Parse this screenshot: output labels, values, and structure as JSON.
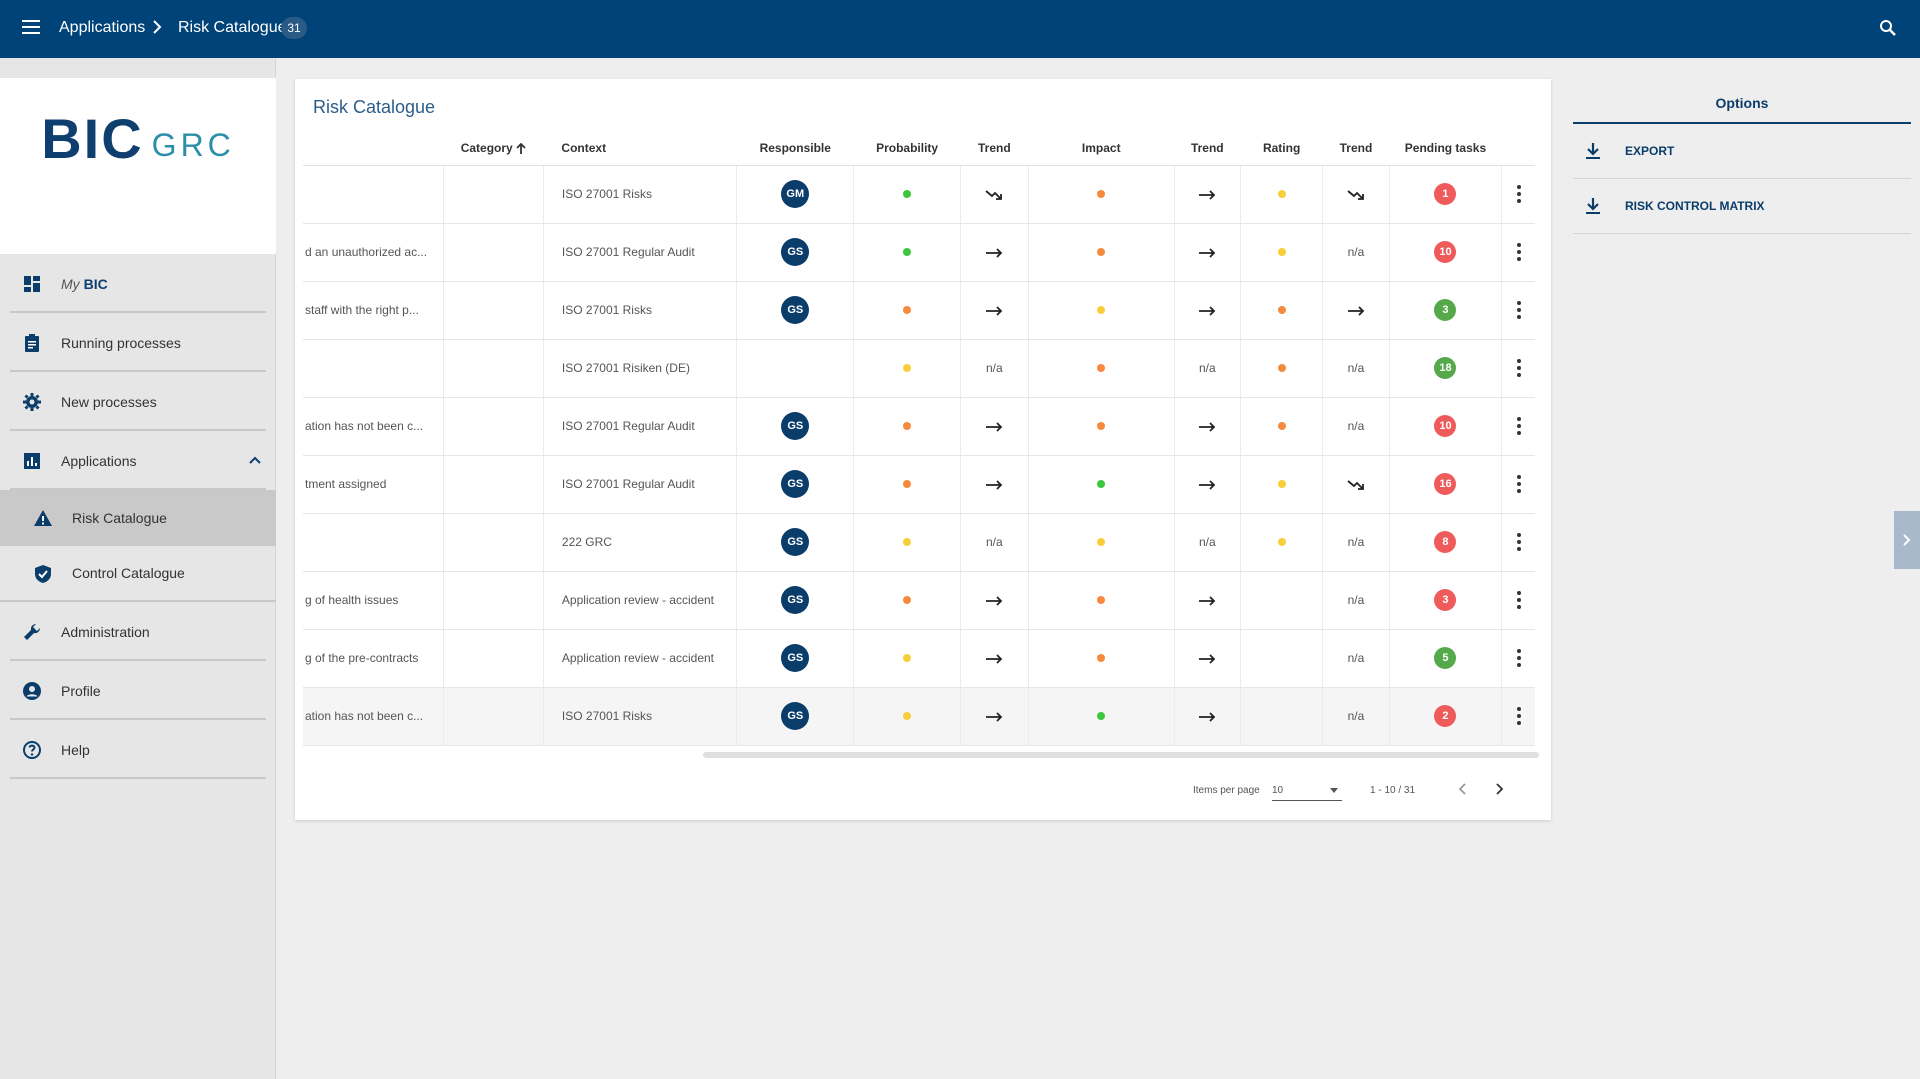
{
  "topbar": {
    "breadcrumb": [
      "Applications",
      "Risk Catalogue"
    ],
    "count": "31"
  },
  "sidebar": {
    "logo": {
      "main": "BIC",
      "sub": "GRC"
    },
    "items": [
      {
        "label": "BIC",
        "prefix": "My",
        "icon": "dashboard-icon"
      },
      {
        "label": "Running processes",
        "icon": "clipboard-icon"
      },
      {
        "label": "New processes",
        "icon": "gear-icon"
      },
      {
        "label": "Applications",
        "icon": "bar-chart-icon"
      },
      {
        "label": "Risk Catalogue",
        "icon": "warning-icon"
      },
      {
        "label": "Control Catalogue",
        "icon": "shield-check-icon"
      },
      {
        "label": "Administration",
        "icon": "wrench-icon"
      },
      {
        "label": "Profile",
        "icon": "account-circle-icon"
      },
      {
        "label": "Help",
        "icon": "help-circle-icon"
      }
    ]
  },
  "main": {
    "title": "Risk Catalogue",
    "columns": [
      "",
      "Category",
      "Context",
      "Responsible",
      "Probability",
      "Trend",
      "Impact",
      "Trend",
      "Rating",
      "Trend",
      "Pending tasks",
      ""
    ],
    "rows": [
      {
        "name": "",
        "context": "ISO 27001 Risks",
        "resp": "GM",
        "prob": "green",
        "t1": "down",
        "imp": "orange",
        "t2": "right",
        "rat": "yellow",
        "t3": "down",
        "tasks": "1",
        "tcolor": "red"
      },
      {
        "name": "d an unauthorized ac...",
        "context": "ISO 27001 Regular Audit",
        "resp": "GS",
        "prob": "green",
        "t1": "right",
        "imp": "orange",
        "t2": "right",
        "rat": "yellow",
        "t3": "n/a",
        "tasks": "10",
        "tcolor": "red"
      },
      {
        "name": "staff with the right p...",
        "context": "ISO 27001 Risks",
        "resp": "GS",
        "prob": "orange",
        "t1": "right",
        "imp": "yellow",
        "t2": "right",
        "rat": "orange",
        "t3": "right",
        "tasks": "3",
        "tcolor": "green"
      },
      {
        "name": "",
        "context": "ISO 27001 Risiken (DE)",
        "resp": "",
        "prob": "yellow",
        "t1": "n/a",
        "imp": "orange",
        "t2": "n/a",
        "rat": "orange",
        "t3": "n/a",
        "tasks": "18",
        "tcolor": "green"
      },
      {
        "name": "ation has not been c...",
        "context": "ISO 27001 Regular Audit",
        "resp": "GS",
        "prob": "orange",
        "t1": "right",
        "imp": "orange",
        "t2": "right",
        "rat": "orange",
        "t3": "n/a",
        "tasks": "10",
        "tcolor": "red"
      },
      {
        "name": "tment assigned",
        "context": "ISO 27001 Regular Audit",
        "resp": "GS",
        "prob": "orange",
        "t1": "right",
        "imp": "green",
        "t2": "right",
        "rat": "yellow",
        "t3": "down",
        "tasks": "16",
        "tcolor": "red"
      },
      {
        "name": "",
        "context": "222 GRC",
        "resp": "GS",
        "prob": "yellow",
        "t1": "n/a",
        "imp": "yellow",
        "t2": "n/a",
        "rat": "yellow",
        "t3": "n/a",
        "tasks": "8",
        "tcolor": "red"
      },
      {
        "name": "g of health issues",
        "context": "Application review - accident",
        "resp": "GS",
        "prob": "orange",
        "t1": "right",
        "imp": "orange",
        "t2": "right",
        "rat": "",
        "t3": "n/a",
        "tasks": "3",
        "tcolor": "red"
      },
      {
        "name": "g of the pre-contracts",
        "context": "Application review - accident",
        "resp": "GS",
        "prob": "yellow",
        "t1": "right",
        "imp": "orange",
        "t2": "right",
        "rat": "",
        "t3": "n/a",
        "tasks": "5",
        "tcolor": "green"
      },
      {
        "name": "ation has not been c...",
        "context": "ISO 27001 Risks",
        "resp": "GS",
        "prob": "yellow",
        "t1": "right",
        "imp": "green",
        "t2": "right",
        "rat": "",
        "t3": "n/a",
        "tasks": "2",
        "tcolor": "red"
      }
    ],
    "paginator": {
      "items_per_page_label": "Items per page",
      "items_per_page": "10",
      "range": "1 - 10 / 31"
    }
  },
  "options": {
    "title": "Options",
    "items": [
      {
        "label": "EXPORT",
        "icon": "download-icon"
      },
      {
        "label": "RISK CONTROL MATRIX",
        "icon": "download-icon"
      }
    ]
  },
  "colors": {
    "topbar": "#004378",
    "green": "#3cc63c",
    "orange": "#f58a3c",
    "yellow": "#f7cf3a",
    "badge_red": "#ef5b5b",
    "badge_green": "#55a94b",
    "primary": "#0b3d6b"
  }
}
